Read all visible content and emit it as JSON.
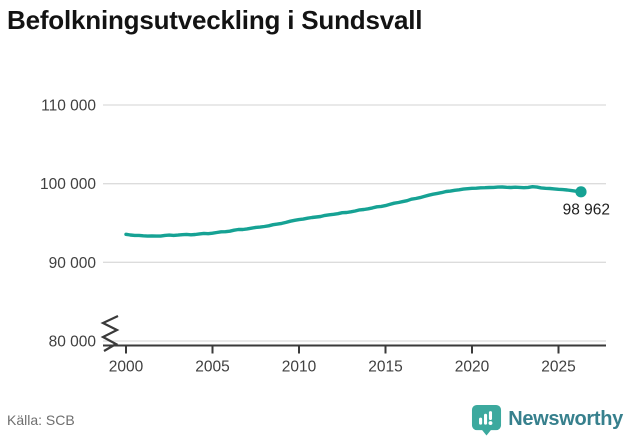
{
  "title": "Befolkningsutveckling i Sundsvall",
  "source": "Källa: SCB",
  "branding": {
    "logo_text": "Newsworthy"
  },
  "colors": {
    "line": "#16a294",
    "grid": "#dcdcdc",
    "axis": "#3a3a3a",
    "tick_text": "#404040",
    "annotation": "#1f1f1f",
    "logo_icon": "#3ca99e",
    "logo_text": "#37808d"
  },
  "chart_data": {
    "type": "line",
    "title": "Befolkningsutveckling i Sundsvall",
    "xlabel": "",
    "ylabel": "",
    "x_ticks": [
      2000,
      2005,
      2010,
      2015,
      2020,
      2025
    ],
    "x_tick_labels": [
      "2000",
      "2005",
      "2010",
      "2015",
      "2020",
      "2025"
    ],
    "y_ticks": [
      80000,
      90000,
      100000,
      110000
    ],
    "y_tick_labels": [
      "80 000",
      "90 000",
      "100 000",
      "110 000"
    ],
    "ylim": [
      80000,
      112000
    ],
    "axis_break_at_bottom": true,
    "grid": "horizontal",
    "legend": "none",
    "last_value": 98962,
    "last_value_label": "98 962",
    "series": [
      {
        "name": "Befolkning",
        "x": [
          2000,
          2000.25,
          2000.5,
          2000.75,
          2001,
          2001.25,
          2001.5,
          2001.75,
          2002,
          2002.25,
          2002.5,
          2002.75,
          2003,
          2003.25,
          2003.5,
          2003.75,
          2004,
          2004.25,
          2004.5,
          2004.75,
          2005,
          2005.25,
          2005.5,
          2005.75,
          2006,
          2006.25,
          2006.5,
          2006.75,
          2007,
          2007.25,
          2007.5,
          2007.75,
          2008,
          2008.25,
          2008.5,
          2008.75,
          2009,
          2009.25,
          2009.5,
          2009.75,
          2010,
          2010.25,
          2010.5,
          2010.75,
          2011,
          2011.25,
          2011.5,
          2011.75,
          2012,
          2012.25,
          2012.5,
          2012.75,
          2013,
          2013.25,
          2013.5,
          2013.75,
          2014,
          2014.25,
          2014.5,
          2014.75,
          2015,
          2015.25,
          2015.5,
          2015.75,
          2016,
          2016.25,
          2016.5,
          2016.75,
          2017,
          2017.25,
          2017.5,
          2017.75,
          2018,
          2018.25,
          2018.5,
          2018.75,
          2019,
          2019.25,
          2019.5,
          2019.75,
          2020,
          2020.25,
          2020.5,
          2020.75,
          2021,
          2021.25,
          2021.5,
          2021.75,
          2022,
          2022.25,
          2022.5,
          2022.75,
          2023,
          2023.25,
          2023.5,
          2023.75,
          2024,
          2024.25,
          2024.5,
          2024.75,
          2025,
          2025.25,
          2025.5,
          2025.75,
          2026,
          2026.3
        ],
        "y": [
          93560,
          93470,
          93420,
          93430,
          93370,
          93340,
          93350,
          93330,
          93340,
          93420,
          93460,
          93420,
          93460,
          93510,
          93550,
          93500,
          93540,
          93620,
          93680,
          93640,
          93700,
          93790,
          93880,
          93900,
          93960,
          94080,
          94180,
          94170,
          94250,
          94340,
          94440,
          94480,
          94560,
          94640,
          94780,
          94860,
          94950,
          95080,
          95230,
          95340,
          95430,
          95490,
          95610,
          95700,
          95760,
          95820,
          95960,
          96040,
          96110,
          96180,
          96310,
          96340,
          96420,
          96520,
          96660,
          96710,
          96810,
          96920,
          97060,
          97110,
          97210,
          97360,
          97520,
          97610,
          97720,
          97840,
          98020,
          98110,
          98230,
          98380,
          98530,
          98660,
          98760,
          98870,
          99010,
          99060,
          99160,
          99220,
          99310,
          99360,
          99410,
          99430,
          99470,
          99490,
          99510,
          99530,
          99560,
          99570,
          99540,
          99510,
          99550,
          99520,
          99490,
          99530,
          99610,
          99560,
          99460,
          99410,
          99390,
          99340,
          99290,
          99240,
          99190,
          99120,
          99040,
          98962
        ]
      }
    ]
  }
}
